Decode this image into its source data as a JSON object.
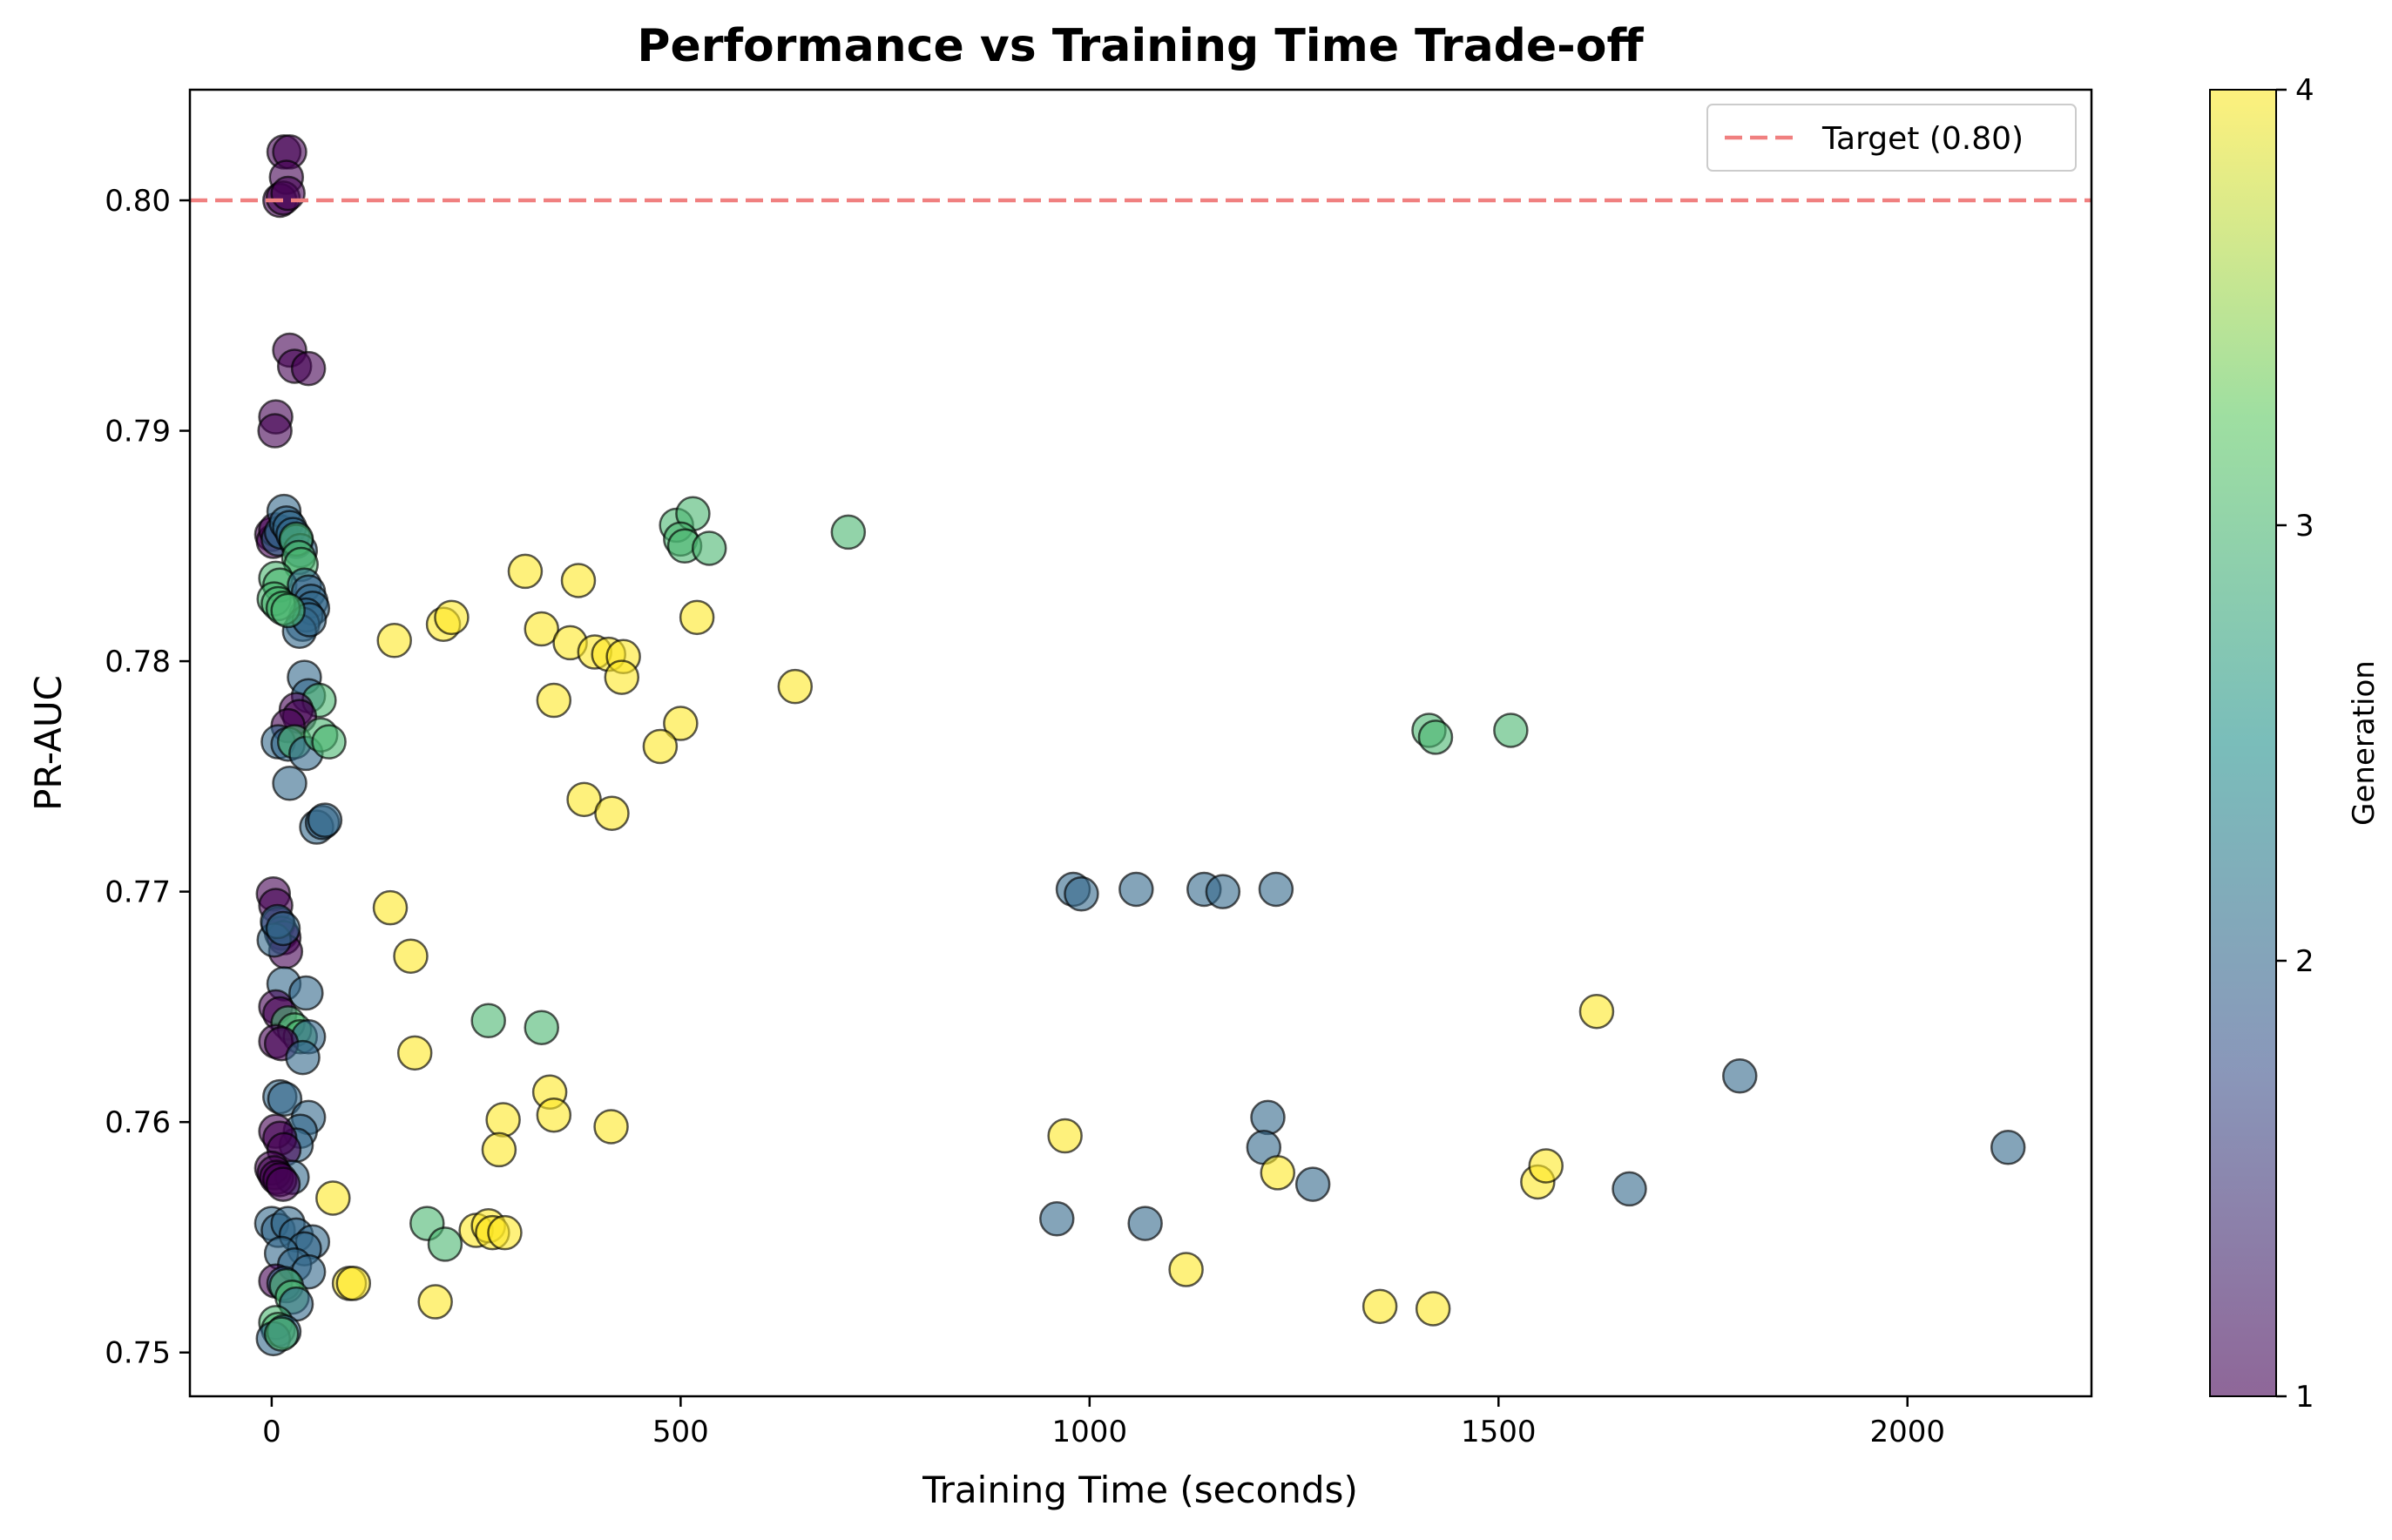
{
  "chart_data": {
    "type": "scatter",
    "title": "Performance vs Training Time Trade-off",
    "xlabel": "Training Time (seconds)",
    "ylabel": "PR-AUC",
    "xlim": [
      -100,
      2225
    ],
    "ylim": [
      0.7481,
      0.8048
    ],
    "xticks": [
      0,
      500,
      1000,
      1500,
      2000
    ],
    "yticks": [
      0.75,
      0.76,
      0.77,
      0.78,
      0.79,
      0.8
    ],
    "ytick_labels": [
      "0.75",
      "0.76",
      "0.77",
      "0.78",
      "0.79",
      "0.80"
    ],
    "grid": false,
    "legend": {
      "placement": "top-right",
      "entries": [
        {
          "label": "Target (0.80)"
        }
      ]
    },
    "reference_line": {
      "y": 0.8,
      "label": "Target (0.80)",
      "color": "#f08080",
      "style": "dashed"
    },
    "colorbar": {
      "label": "Generation",
      "range": [
        1,
        4
      ],
      "ticks": [
        1,
        2,
        3,
        4
      ],
      "colormap": [
        "#440154",
        "#3b528b",
        "#21918c",
        "#5ec962",
        "#fde725"
      ]
    },
    "marker": {
      "alpha": 0.6,
      "edge_color": "#000000"
    },
    "points": [
      {
        "x": 15,
        "y": 0.8021,
        "g": 1
      },
      {
        "x": 22,
        "y": 0.8021,
        "g": 1
      },
      {
        "x": 18,
        "y": 0.801,
        "g": 1
      },
      {
        "x": 10,
        "y": 0.8,
        "g": 1
      },
      {
        "x": 14,
        "y": 0.8001,
        "g": 1
      },
      {
        "x": 20,
        "y": 0.8003,
        "g": 1
      },
      {
        "x": 22,
        "y": 0.7935,
        "g": 1
      },
      {
        "x": 28,
        "y": 0.7928,
        "g": 1
      },
      {
        "x": 45,
        "y": 0.7927,
        "g": 1
      },
      {
        "x": 5,
        "y": 0.7906,
        "g": 1
      },
      {
        "x": 4,
        "y": 0.79,
        "g": 1
      },
      {
        "x": 0,
        "y": 0.7855,
        "g": 1
      },
      {
        "x": 2,
        "y": 0.7852,
        "g": 1
      },
      {
        "x": 5,
        "y": 0.7857,
        "g": 1
      },
      {
        "x": 8,
        "y": 0.7853,
        "g": 2
      },
      {
        "x": 12,
        "y": 0.7856,
        "g": 2
      },
      {
        "x": 15,
        "y": 0.7865,
        "g": 2
      },
      {
        "x": 18,
        "y": 0.786,
        "g": 2
      },
      {
        "x": 22,
        "y": 0.7858,
        "g": 2
      },
      {
        "x": 26,
        "y": 0.7855,
        "g": 2
      },
      {
        "x": 30,
        "y": 0.7852,
        "g": 2
      },
      {
        "x": 35,
        "y": 0.7848,
        "g": 2
      },
      {
        "x": 30,
        "y": 0.7853,
        "g": 3
      },
      {
        "x": 33,
        "y": 0.7845,
        "g": 3
      },
      {
        "x": 36,
        "y": 0.7842,
        "g": 3
      },
      {
        "x": 5,
        "y": 0.7836,
        "g": 3
      },
      {
        "x": 10,
        "y": 0.7833,
        "g": 3
      },
      {
        "x": 40,
        "y": 0.7833,
        "g": 2
      },
      {
        "x": 45,
        "y": 0.783,
        "g": 2
      },
      {
        "x": 48,
        "y": 0.7826,
        "g": 2
      },
      {
        "x": 50,
        "y": 0.7823,
        "g": 2
      },
      {
        "x": 42,
        "y": 0.782,
        "g": 2
      },
      {
        "x": 38,
        "y": 0.7816,
        "g": 2
      },
      {
        "x": 34,
        "y": 0.7813,
        "g": 2
      },
      {
        "x": 46,
        "y": 0.7818,
        "g": 2
      },
      {
        "x": 3,
        "y": 0.7827,
        "g": 3
      },
      {
        "x": 8,
        "y": 0.7825,
        "g": 3
      },
      {
        "x": 14,
        "y": 0.7823,
        "g": 3
      },
      {
        "x": 20,
        "y": 0.7822,
        "g": 3
      },
      {
        "x": 40,
        "y": 0.7793,
        "g": 2
      },
      {
        "x": 45,
        "y": 0.7785,
        "g": 2
      },
      {
        "x": 58,
        "y": 0.7783,
        "g": 3
      },
      {
        "x": 30,
        "y": 0.7779,
        "g": 1
      },
      {
        "x": 34,
        "y": 0.7776,
        "g": 1
      },
      {
        "x": 20,
        "y": 0.7772,
        "g": 1
      },
      {
        "x": 8,
        "y": 0.7765,
        "g": 2
      },
      {
        "x": 20,
        "y": 0.7764,
        "g": 2
      },
      {
        "x": 28,
        "y": 0.7765,
        "g": 3
      },
      {
        "x": 42,
        "y": 0.776,
        "g": 2
      },
      {
        "x": 60,
        "y": 0.7768,
        "g": 3
      },
      {
        "x": 70,
        "y": 0.7765,
        "g": 3
      },
      {
        "x": 22,
        "y": 0.7747,
        "g": 2
      },
      {
        "x": 55,
        "y": 0.7728,
        "g": 2
      },
      {
        "x": 62,
        "y": 0.773,
        "g": 2
      },
      {
        "x": 65,
        "y": 0.7731,
        "g": 2
      },
      {
        "x": 150,
        "y": 0.7809,
        "g": 4
      },
      {
        "x": 210,
        "y": 0.7816,
        "g": 4
      },
      {
        "x": 220,
        "y": 0.7819,
        "g": 4
      },
      {
        "x": 310,
        "y": 0.7839,
        "g": 4
      },
      {
        "x": 330,
        "y": 0.7814,
        "g": 4
      },
      {
        "x": 365,
        "y": 0.7808,
        "g": 4
      },
      {
        "x": 375,
        "y": 0.7835,
        "g": 4
      },
      {
        "x": 395,
        "y": 0.7804,
        "g": 4
      },
      {
        "x": 412,
        "y": 0.7803,
        "g": 4
      },
      {
        "x": 430,
        "y": 0.7802,
        "g": 4
      },
      {
        "x": 428,
        "y": 0.7793,
        "g": 4
      },
      {
        "x": 345,
        "y": 0.7783,
        "g": 4
      },
      {
        "x": 520,
        "y": 0.7819,
        "g": 4
      },
      {
        "x": 640,
        "y": 0.7789,
        "g": 4
      },
      {
        "x": 500,
        "y": 0.7773,
        "g": 4
      },
      {
        "x": 475,
        "y": 0.7763,
        "g": 4
      },
      {
        "x": 382,
        "y": 0.774,
        "g": 4
      },
      {
        "x": 416,
        "y": 0.7734,
        "g": 4
      },
      {
        "x": 495,
        "y": 0.7859,
        "g": 3
      },
      {
        "x": 515,
        "y": 0.7864,
        "g": 3
      },
      {
        "x": 500,
        "y": 0.7853,
        "g": 3
      },
      {
        "x": 505,
        "y": 0.785,
        "g": 3
      },
      {
        "x": 535,
        "y": 0.7849,
        "g": 3
      },
      {
        "x": 705,
        "y": 0.7856,
        "g": 3
      },
      {
        "x": 1415,
        "y": 0.777,
        "g": 3
      },
      {
        "x": 1423,
        "y": 0.7767,
        "g": 3
      },
      {
        "x": 1515,
        "y": 0.777,
        "g": 3
      },
      {
        "x": 980,
        "y": 0.7701,
        "g": 2
      },
      {
        "x": 990,
        "y": 0.7699,
        "g": 2
      },
      {
        "x": 1057,
        "y": 0.7701,
        "g": 2
      },
      {
        "x": 1140,
        "y": 0.7701,
        "g": 2
      },
      {
        "x": 1163,
        "y": 0.77,
        "g": 2
      },
      {
        "x": 1228,
        "y": 0.7701,
        "g": 2
      },
      {
        "x": 2,
        "y": 0.7699,
        "g": 1
      },
      {
        "x": 5,
        "y": 0.7694,
        "g": 1
      },
      {
        "x": 8,
        "y": 0.7686,
        "g": 1
      },
      {
        "x": 12,
        "y": 0.7682,
        "g": 1
      },
      {
        "x": 15,
        "y": 0.768,
        "g": 1
      },
      {
        "x": 17,
        "y": 0.7674,
        "g": 1
      },
      {
        "x": 3,
        "y": 0.7679,
        "g": 2
      },
      {
        "x": 7,
        "y": 0.7687,
        "g": 2
      },
      {
        "x": 14,
        "y": 0.7684,
        "g": 2
      },
      {
        "x": 145,
        "y": 0.7693,
        "g": 4
      },
      {
        "x": 170,
        "y": 0.7672,
        "g": 4
      },
      {
        "x": 175,
        "y": 0.763,
        "g": 4
      },
      {
        "x": 15,
        "y": 0.766,
        "g": 2
      },
      {
        "x": 42,
        "y": 0.7656,
        "g": 2
      },
      {
        "x": 5,
        "y": 0.765,
        "g": 1
      },
      {
        "x": 10,
        "y": 0.7647,
        "g": 1
      },
      {
        "x": 20,
        "y": 0.7643,
        "g": 3
      },
      {
        "x": 28,
        "y": 0.764,
        "g": 3
      },
      {
        "x": 35,
        "y": 0.7637,
        "g": 3
      },
      {
        "x": 45,
        "y": 0.7637,
        "g": 2
      },
      {
        "x": 5,
        "y": 0.7635,
        "g": 1
      },
      {
        "x": 12,
        "y": 0.7634,
        "g": 1
      },
      {
        "x": 38,
        "y": 0.7628,
        "g": 2
      },
      {
        "x": 265,
        "y": 0.7644,
        "g": 3
      },
      {
        "x": 330,
        "y": 0.7641,
        "g": 3
      },
      {
        "x": 10,
        "y": 0.7611,
        "g": 2
      },
      {
        "x": 16,
        "y": 0.761,
        "g": 2
      },
      {
        "x": 45,
        "y": 0.7602,
        "g": 2
      },
      {
        "x": 35,
        "y": 0.7596,
        "g": 2
      },
      {
        "x": 30,
        "y": 0.759,
        "g": 2
      },
      {
        "x": 5,
        "y": 0.7596,
        "g": 1
      },
      {
        "x": 10,
        "y": 0.7593,
        "g": 1
      },
      {
        "x": 15,
        "y": 0.7588,
        "g": 1
      },
      {
        "x": 25,
        "y": 0.7576,
        "g": 2
      },
      {
        "x": 340,
        "y": 0.7613,
        "g": 4
      },
      {
        "x": 345,
        "y": 0.7603,
        "g": 4
      },
      {
        "x": 283,
        "y": 0.7601,
        "g": 4
      },
      {
        "x": 278,
        "y": 0.7588,
        "g": 4
      },
      {
        "x": 415,
        "y": 0.7598,
        "g": 4
      },
      {
        "x": 970,
        "y": 0.7594,
        "g": 4
      },
      {
        "x": 0,
        "y": 0.758,
        "g": 1
      },
      {
        "x": 3,
        "y": 0.7578,
        "g": 1
      },
      {
        "x": 6,
        "y": 0.7576,
        "g": 1
      },
      {
        "x": 10,
        "y": 0.7575,
        "g": 1
      },
      {
        "x": 14,
        "y": 0.7573,
        "g": 1
      },
      {
        "x": 75,
        "y": 0.7567,
        "g": 4
      },
      {
        "x": 1218,
        "y": 0.7602,
        "g": 2
      },
      {
        "x": 1213,
        "y": 0.7589,
        "g": 2
      },
      {
        "x": 1230,
        "y": 0.7578,
        "g": 4
      },
      {
        "x": 1273,
        "y": 0.7573,
        "g": 2
      },
      {
        "x": 1795,
        "y": 0.762,
        "g": 2
      },
      {
        "x": 2123,
        "y": 0.7589,
        "g": 2
      },
      {
        "x": 1620,
        "y": 0.7648,
        "g": 4
      },
      {
        "x": 1548,
        "y": 0.7574,
        "g": 4
      },
      {
        "x": 1558,
        "y": 0.7581,
        "g": 4
      },
      {
        "x": 1660,
        "y": 0.7571,
        "g": 2
      },
      {
        "x": 0,
        "y": 0.7556,
        "g": 2
      },
      {
        "x": 8,
        "y": 0.7553,
        "g": 2
      },
      {
        "x": 20,
        "y": 0.7556,
        "g": 2
      },
      {
        "x": 30,
        "y": 0.7551,
        "g": 2
      },
      {
        "x": 50,
        "y": 0.7548,
        "g": 2
      },
      {
        "x": 40,
        "y": 0.7545,
        "g": 2
      },
      {
        "x": 12,
        "y": 0.7543,
        "g": 2
      },
      {
        "x": 28,
        "y": 0.7538,
        "g": 2
      },
      {
        "x": 45,
        "y": 0.7535,
        "g": 2
      },
      {
        "x": 5,
        "y": 0.7531,
        "g": 1
      },
      {
        "x": 15,
        "y": 0.753,
        "g": 2
      },
      {
        "x": 190,
        "y": 0.7556,
        "g": 3
      },
      {
        "x": 212,
        "y": 0.7547,
        "g": 3
      },
      {
        "x": 250,
        "y": 0.7553,
        "g": 4
      },
      {
        "x": 265,
        "y": 0.7555,
        "g": 4
      },
      {
        "x": 270,
        "y": 0.7552,
        "g": 4
      },
      {
        "x": 285,
        "y": 0.7552,
        "g": 4
      },
      {
        "x": 95,
        "y": 0.753,
        "g": 4
      },
      {
        "x": 100,
        "y": 0.753,
        "g": 4
      },
      {
        "x": 200,
        "y": 0.7522,
        "g": 4
      },
      {
        "x": 960,
        "y": 0.7558,
        "g": 2
      },
      {
        "x": 1068,
        "y": 0.7556,
        "g": 2
      },
      {
        "x": 1118,
        "y": 0.7536,
        "g": 4
      },
      {
        "x": 1355,
        "y": 0.752,
        "g": 4
      },
      {
        "x": 1420,
        "y": 0.7519,
        "g": 4
      },
      {
        "x": 18,
        "y": 0.7529,
        "g": 3
      },
      {
        "x": 25,
        "y": 0.7524,
        "g": 3
      },
      {
        "x": 30,
        "y": 0.7521,
        "g": 2
      },
      {
        "x": 5,
        "y": 0.7513,
        "g": 3
      },
      {
        "x": 8,
        "y": 0.751,
        "g": 3
      },
      {
        "x": 2,
        "y": 0.7506,
        "g": 2
      },
      {
        "x": 15,
        "y": 0.7509,
        "g": 2
      },
      {
        "x": 12,
        "y": 0.7508,
        "g": 3
      }
    ]
  }
}
